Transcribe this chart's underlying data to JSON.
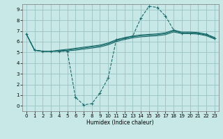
{
  "background_color": "#c8e8e8",
  "grid_color": "#a0c8c8",
  "line_color": "#1a6b6b",
  "xlabel": "Humidex (Indice chaleur)",
  "xlim": [
    -0.5,
    23.5
  ],
  "ylim": [
    -0.5,
    9.5
  ],
  "xticks": [
    0,
    1,
    2,
    3,
    4,
    5,
    6,
    7,
    8,
    9,
    10,
    11,
    12,
    13,
    14,
    15,
    16,
    17,
    18,
    19,
    20,
    21,
    22,
    23
  ],
  "yticks": [
    0,
    1,
    2,
    3,
    4,
    5,
    6,
    7,
    8,
    9
  ],
  "curve_dashed": {
    "x": [
      0,
      1,
      2,
      3,
      4,
      5,
      6,
      7,
      8,
      9,
      10,
      11,
      12,
      13,
      14,
      15,
      16,
      17,
      18,
      19,
      20,
      21,
      22,
      23
    ],
    "y": [
      6.7,
      5.2,
      5.1,
      5.1,
      5.1,
      5.1,
      0.8,
      0.1,
      0.2,
      1.2,
      2.6,
      6.2,
      6.3,
      6.5,
      8.2,
      9.3,
      9.2,
      8.4,
      7.1,
      6.8,
      6.8,
      6.8,
      6.7,
      6.3
    ]
  },
  "curve_solid1": {
    "x": [
      0,
      1,
      2,
      3,
      4,
      5,
      6,
      7,
      8,
      9,
      10,
      11,
      12,
      13,
      14,
      15,
      16,
      17,
      18,
      19,
      20,
      21,
      22,
      23
    ],
    "y": [
      6.7,
      5.2,
      5.1,
      5.1,
      5.1,
      5.15,
      5.2,
      5.3,
      5.4,
      5.5,
      5.7,
      6.0,
      6.2,
      6.35,
      6.45,
      6.5,
      6.55,
      6.65,
      6.9,
      6.75,
      6.75,
      6.7,
      6.55,
      6.25
    ]
  },
  "curve_solid2": {
    "x": [
      0,
      1,
      2,
      3,
      4,
      5,
      6,
      7,
      8,
      9,
      10,
      11,
      12,
      13,
      14,
      15,
      16,
      17,
      18,
      19,
      20,
      21,
      22,
      23
    ],
    "y": [
      6.7,
      5.2,
      5.1,
      5.1,
      5.15,
      5.2,
      5.3,
      5.4,
      5.5,
      5.6,
      5.8,
      6.1,
      6.3,
      6.45,
      6.55,
      6.6,
      6.65,
      6.75,
      7.0,
      6.82,
      6.82,
      6.77,
      6.62,
      6.32
    ]
  },
  "curve_solid3": {
    "x": [
      0,
      1,
      2,
      3,
      4,
      5,
      6,
      7,
      8,
      9,
      10,
      11,
      12,
      13,
      14,
      15,
      16,
      17,
      18,
      19,
      20,
      21,
      22,
      23
    ],
    "y": [
      6.7,
      5.2,
      5.1,
      5.1,
      5.2,
      5.28,
      5.38,
      5.48,
      5.58,
      5.68,
      5.88,
      6.18,
      6.38,
      6.53,
      6.63,
      6.68,
      6.73,
      6.83,
      7.08,
      6.9,
      6.9,
      6.85,
      6.7,
      6.4
    ]
  }
}
